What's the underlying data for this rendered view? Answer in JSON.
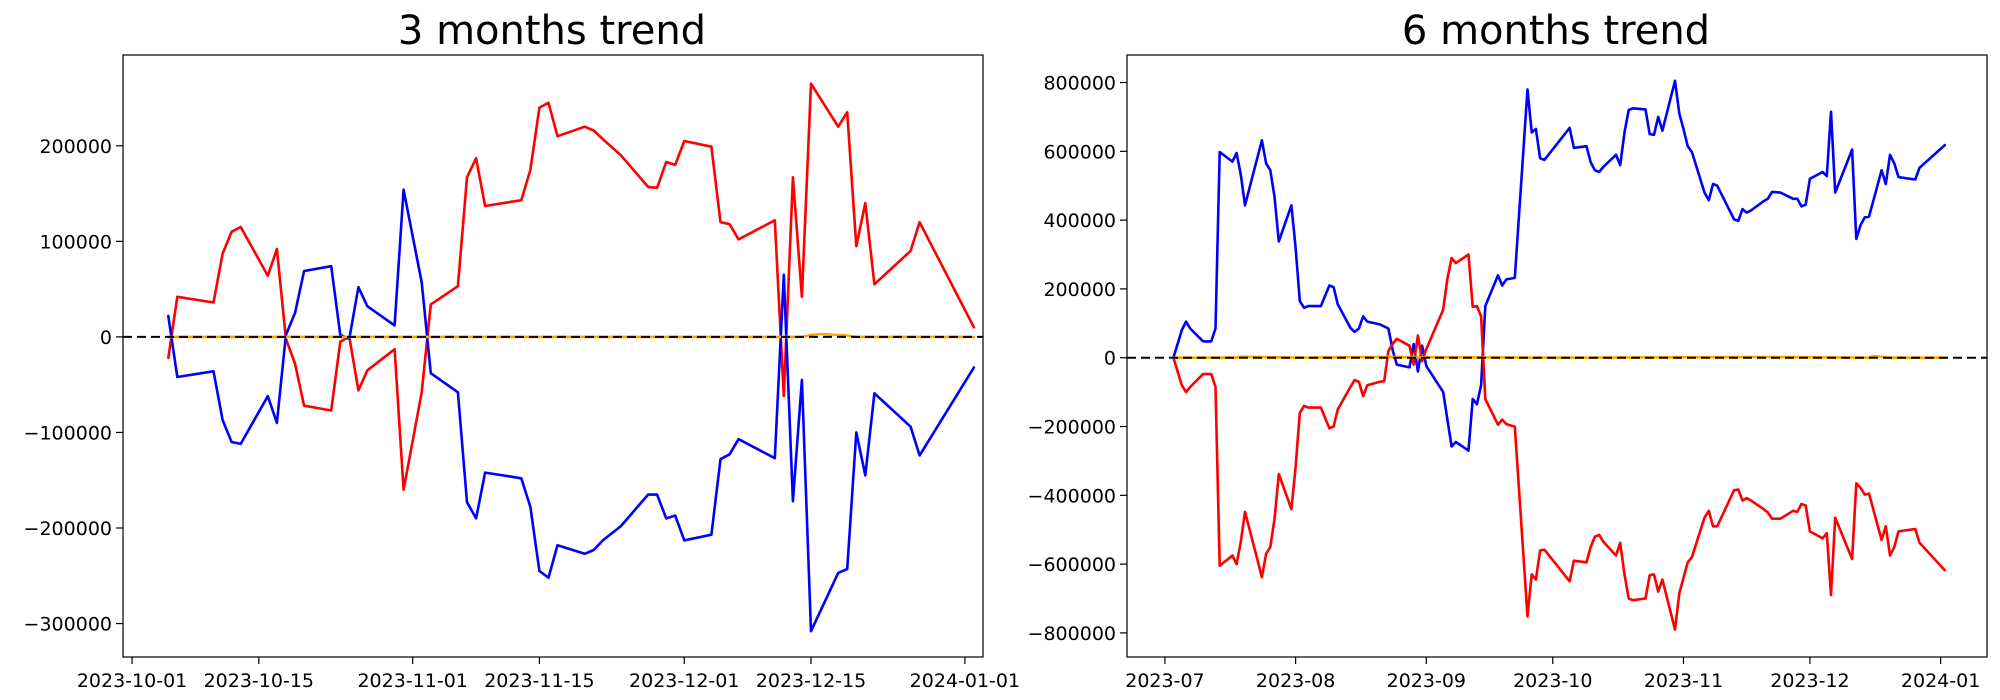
{
  "chart_data": [
    {
      "type": "line",
      "title": "3 months trend",
      "xlabel": "",
      "ylabel": "",
      "x_ticks": [
        "2023-10-01",
        "2023-10-15",
        "2023-11-01",
        "2023-11-15",
        "2023-12-01",
        "2023-12-15",
        "2024-01-01"
      ],
      "y_ticks": [
        -300000,
        -200000,
        -100000,
        0,
        100000,
        200000
      ],
      "xlim": [
        "2023-09-30",
        "2024-01-03"
      ],
      "ylim": [
        -335000,
        295000
      ],
      "grid": false,
      "reference_line": {
        "y": 0,
        "style": "dashed",
        "color": "#000000"
      },
      "series": [
        {
          "color": "#ff0000",
          "x": [
            "2023-10-05",
            "2023-10-06",
            "2023-10-10",
            "2023-10-11",
            "2023-10-12",
            "2023-10-13",
            "2023-10-16",
            "2023-10-17",
            "2023-10-18",
            "2023-10-19",
            "2023-10-20",
            "2023-10-23",
            "2023-10-24",
            "2023-10-25",
            "2023-10-26",
            "2023-10-27",
            "2023-10-30",
            "2023-10-31",
            "2023-11-02",
            "2023-11-03",
            "2023-11-06",
            "2023-11-07",
            "2023-11-08",
            "2023-11-09",
            "2023-11-13",
            "2023-11-14",
            "2023-11-15",
            "2023-11-16",
            "2023-11-17",
            "2023-11-20",
            "2023-11-21",
            "2023-11-22",
            "2023-11-24",
            "2023-11-27",
            "2023-11-28",
            "2023-11-29",
            "2023-11-30",
            "2023-12-01",
            "2023-12-04",
            "2023-12-05",
            "2023-12-06",
            "2023-12-07",
            "2023-12-11",
            "2023-12-12",
            "2023-12-13",
            "2023-12-14",
            "2023-12-15",
            "2023-12-18",
            "2023-12-19",
            "2023-12-20",
            "2023-12-21",
            "2023-12-22",
            "2023-12-26",
            "2023-12-27",
            "2024-01-02"
          ],
          "values": [
            -22000,
            42000,
            36000,
            87000,
            110000,
            115000,
            64000,
            92000,
            -2000,
            -28000,
            -72000,
            -77000,
            -5000,
            0,
            -56000,
            -35000,
            -13000,
            -160000,
            -58000,
            34000,
            53000,
            167000,
            187000,
            137000,
            143000,
            175000,
            240000,
            245000,
            210000,
            220000,
            216000,
            207000,
            190000,
            157000,
            156000,
            183000,
            180000,
            205000,
            199000,
            120000,
            118000,
            102000,
            122000,
            -62000,
            167000,
            42000,
            265000,
            220000,
            235000,
            95000,
            140000,
            55000,
            90000,
            120000,
            10000
          ]
        },
        {
          "color": "#0000ff",
          "x": [
            "2023-10-05",
            "2023-10-06",
            "2023-10-10",
            "2023-10-11",
            "2023-10-12",
            "2023-10-13",
            "2023-10-16",
            "2023-10-17",
            "2023-10-18",
            "2023-10-19",
            "2023-10-20",
            "2023-10-23",
            "2023-10-24",
            "2023-10-25",
            "2023-10-26",
            "2023-10-27",
            "2023-10-30",
            "2023-10-31",
            "2023-11-02",
            "2023-11-03",
            "2023-11-06",
            "2023-11-07",
            "2023-11-08",
            "2023-11-09",
            "2023-11-13",
            "2023-11-14",
            "2023-11-15",
            "2023-11-16",
            "2023-11-17",
            "2023-11-20",
            "2023-11-21",
            "2023-11-22",
            "2023-11-24",
            "2023-11-27",
            "2023-11-28",
            "2023-11-29",
            "2023-11-30",
            "2023-12-01",
            "2023-12-04",
            "2023-12-05",
            "2023-12-06",
            "2023-12-07",
            "2023-12-11",
            "2023-12-12",
            "2023-12-13",
            "2023-12-14",
            "2023-12-15",
            "2023-12-18",
            "2023-12-19",
            "2023-12-20",
            "2023-12-21",
            "2023-12-22",
            "2023-12-26",
            "2023-12-27",
            "2024-01-02"
          ],
          "values": [
            22000,
            -42000,
            -36000,
            -87000,
            -110000,
            -112000,
            -62000,
            -90000,
            2000,
            25000,
            69000,
            74000,
            2000,
            -2000,
            52000,
            32000,
            12000,
            154000,
            57000,
            -38000,
            -58000,
            -173000,
            -190000,
            -142000,
            -148000,
            -178000,
            -245000,
            -252000,
            -218000,
            -227000,
            -223000,
            -213000,
            -198000,
            -165000,
            -165000,
            -190000,
            -187000,
            -213000,
            -207000,
            -128000,
            -123000,
            -107000,
            -127000,
            65000,
            -172000,
            -45000,
            -308000,
            -247000,
            -243000,
            -100000,
            -145000,
            -59000,
            -94000,
            -124000,
            -32000
          ]
        },
        {
          "color": "#ffa500",
          "x": [
            "2023-10-05",
            "2023-12-01",
            "2023-12-14",
            "2023-12-15",
            "2023-12-16",
            "2023-12-18",
            "2023-12-19",
            "2023-12-20",
            "2024-01-02"
          ],
          "values": [
            0,
            0,
            0,
            2000,
            3000,
            2000,
            1500,
            0,
            0
          ]
        }
      ]
    },
    {
      "type": "line",
      "title": "6 months trend",
      "xlabel": "",
      "ylabel": "",
      "x_ticks": [
        "2023-07",
        "2023-08",
        "2023-09",
        "2023-10",
        "2023-11",
        "2023-12",
        "2024-01"
      ],
      "y_ticks": [
        -800000,
        -600000,
        -400000,
        -200000,
        0,
        200000,
        400000,
        600000,
        800000
      ],
      "xlim": [
        "2023-06-22",
        "2024-01-12"
      ],
      "ylim": [
        -870000,
        880000
      ],
      "grid": false,
      "reference_line": {
        "y": 0,
        "style": "dashed",
        "color": "#000000"
      },
      "series": [
        {
          "color": "#0000ff",
          "x": [
            "2023-07-03",
            "2023-07-05",
            "2023-07-06",
            "2023-07-07",
            "2023-07-10",
            "2023-07-11",
            "2023-07-12",
            "2023-07-13",
            "2023-07-14",
            "2023-07-17",
            "2023-07-18",
            "2023-07-19",
            "2023-07-20",
            "2023-07-24",
            "2023-07-25",
            "2023-07-26",
            "2023-07-27",
            "2023-07-28",
            "2023-07-31",
            "2023-08-01",
            "2023-08-02",
            "2023-08-03",
            "2023-08-04",
            "2023-08-07",
            "2023-08-08",
            "2023-08-09",
            "2023-08-10",
            "2023-08-11",
            "2023-08-14",
            "2023-08-15",
            "2023-08-16",
            "2023-08-17",
            "2023-08-18",
            "2023-08-21",
            "2023-08-22",
            "2023-08-23",
            "2023-08-24",
            "2023-08-25",
            "2023-08-28",
            "2023-08-29",
            "2023-08-30",
            "2023-08-31",
            "2023-09-01",
            "2023-09-05",
            "2023-09-06",
            "2023-09-07",
            "2023-09-08",
            "2023-09-11",
            "2023-09-12",
            "2023-09-13",
            "2023-09-14",
            "2023-09-15",
            "2023-09-18",
            "2023-09-19",
            "2023-09-20",
            "2023-09-21",
            "2023-09-22",
            "2023-09-25",
            "2023-09-26",
            "2023-09-27",
            "2023-09-28",
            "2023-09-29",
            "2023-10-05",
            "2023-10-06",
            "2023-10-09",
            "2023-10-10",
            "2023-10-11",
            "2023-10-12",
            "2023-10-13",
            "2023-10-16",
            "2023-10-17",
            "2023-10-18",
            "2023-10-19",
            "2023-10-20",
            "2023-10-23",
            "2023-10-24",
            "2023-10-25",
            "2023-10-26",
            "2023-10-27",
            "2023-10-30",
            "2023-10-31",
            "2023-11-01",
            "2023-11-02",
            "2023-11-03",
            "2023-11-06",
            "2023-11-07",
            "2023-11-08",
            "2023-11-09",
            "2023-11-13",
            "2023-11-14",
            "2023-11-15",
            "2023-11-16",
            "2023-11-17",
            "2023-11-20",
            "2023-11-21",
            "2023-11-22",
            "2023-11-24",
            "2023-11-27",
            "2023-11-28",
            "2023-11-29",
            "2023-11-30",
            "2023-12-01",
            "2023-12-04",
            "2023-12-05",
            "2023-12-06",
            "2023-12-07",
            "2023-12-11",
            "2023-12-12",
            "2023-12-13",
            "2023-12-14",
            "2023-12-15",
            "2023-12-18",
            "2023-12-19",
            "2023-12-20",
            "2023-12-21",
            "2023-12-22",
            "2023-12-26",
            "2023-12-27",
            "2024-01-02"
          ],
          "values": [
            0,
            80000,
            105000,
            85000,
            48000,
            47000,
            48000,
            85000,
            598000,
            570000,
            595000,
            532000,
            443000,
            632000,
            565000,
            545000,
            468000,
            338000,
            443000,
            320000,
            165000,
            145000,
            150000,
            150000,
            180000,
            210000,
            205000,
            155000,
            87000,
            75000,
            85000,
            120000,
            105000,
            97000,
            91000,
            85000,
            23000,
            -20000,
            -28000,
            40000,
            -40000,
            35000,
            -24000,
            -100000,
            -180000,
            -258000,
            -245000,
            -270000,
            -120000,
            -135000,
            -80000,
            150000,
            240000,
            210000,
            228000,
            230000,
            232000,
            780000,
            655000,
            665000,
            580000,
            575000,
            668000,
            610000,
            615000,
            568000,
            545000,
            540000,
            555000,
            590000,
            560000,
            655000,
            720000,
            725000,
            722000,
            650000,
            648000,
            700000,
            660000,
            805000,
            710000,
            665000,
            615000,
            598000,
            480000,
            458000,
            505000,
            500000,
            402000,
            398000,
            432000,
            422000,
            428000,
            455000,
            462000,
            482000,
            480000,
            462000,
            462000,
            440000,
            445000,
            520000,
            540000,
            528000,
            715000,
            480000,
            605000,
            345000,
            385000,
            408000,
            410000,
            545000,
            505000,
            590000,
            565000,
            525000,
            518000,
            552000,
            618000
          ]
        },
        {
          "color": "#ff0000",
          "x": [
            "2023-07-03",
            "2023-07-05",
            "2023-07-06",
            "2023-07-07",
            "2023-07-10",
            "2023-07-11",
            "2023-07-12",
            "2023-07-13",
            "2023-07-14",
            "2023-07-17",
            "2023-07-18",
            "2023-07-19",
            "2023-07-20",
            "2023-07-24",
            "2023-07-25",
            "2023-07-26",
            "2023-07-27",
            "2023-07-28",
            "2023-07-31",
            "2023-08-01",
            "2023-08-02",
            "2023-08-03",
            "2023-08-04",
            "2023-08-07",
            "2023-08-08",
            "2023-08-09",
            "2023-08-10",
            "2023-08-11",
            "2023-08-14",
            "2023-08-15",
            "2023-08-16",
            "2023-08-17",
            "2023-08-18",
            "2023-08-21",
            "2023-08-22",
            "2023-08-23",
            "2023-08-24",
            "2023-08-25",
            "2023-08-28",
            "2023-08-29",
            "2023-08-30",
            "2023-08-31",
            "2023-09-01",
            "2023-09-05",
            "2023-09-06",
            "2023-09-07",
            "2023-09-08",
            "2023-09-11",
            "2023-09-12",
            "2023-09-13",
            "2023-09-14",
            "2023-09-15",
            "2023-09-18",
            "2023-09-19",
            "2023-09-20",
            "2023-09-21",
            "2023-09-22",
            "2023-09-25",
            "2023-09-26",
            "2023-09-27",
            "2023-09-28",
            "2023-09-29",
            "2023-10-05",
            "2023-10-06",
            "2023-10-09",
            "2023-10-10",
            "2023-10-11",
            "2023-10-12",
            "2023-10-13",
            "2023-10-16",
            "2023-10-17",
            "2023-10-18",
            "2023-10-19",
            "2023-10-20",
            "2023-10-23",
            "2023-10-24",
            "2023-10-25",
            "2023-10-26",
            "2023-10-27",
            "2023-10-30",
            "2023-10-31",
            "2023-11-01",
            "2023-11-02",
            "2023-11-03",
            "2023-11-06",
            "2023-11-07",
            "2023-11-08",
            "2023-11-09",
            "2023-11-13",
            "2023-11-14",
            "2023-11-15",
            "2023-11-16",
            "2023-11-17",
            "2023-11-20",
            "2023-11-21",
            "2023-11-22",
            "2023-11-24",
            "2023-11-27",
            "2023-11-28",
            "2023-11-29",
            "2023-11-30",
            "2023-12-01",
            "2023-12-04",
            "2023-12-05",
            "2023-12-06",
            "2023-12-07",
            "2023-12-11",
            "2023-12-12",
            "2023-12-13",
            "2023-12-14",
            "2023-12-15",
            "2023-12-18",
            "2023-12-19",
            "2023-12-20",
            "2023-12-21",
            "2023-12-22",
            "2023-12-26",
            "2023-12-27",
            "2024-01-02"
          ],
          "values": [
            0,
            -80000,
            -100000,
            -85000,
            -48000,
            -47000,
            -48000,
            -85000,
            -605000,
            -575000,
            -600000,
            -535000,
            -448000,
            -638000,
            -570000,
            -550000,
            -470000,
            -338000,
            -440000,
            -318000,
            -160000,
            -140000,
            -145000,
            -145000,
            -175000,
            -205000,
            -200000,
            -150000,
            -85000,
            -65000,
            -70000,
            -112000,
            -80000,
            -70000,
            -68000,
            20000,
            40000,
            55000,
            35000,
            -20000,
            65000,
            -10000,
            25000,
            140000,
            230000,
            290000,
            275000,
            300000,
            148000,
            150000,
            120000,
            -120000,
            -195000,
            -180000,
            -193000,
            -197000,
            -200000,
            -752000,
            -630000,
            -645000,
            -560000,
            -558000,
            -650000,
            -590000,
            -595000,
            -550000,
            -520000,
            -515000,
            -535000,
            -575000,
            -538000,
            -630000,
            -700000,
            -705000,
            -700000,
            -632000,
            -630000,
            -680000,
            -645000,
            -790000,
            -685000,
            -640000,
            -595000,
            -580000,
            -465000,
            -445000,
            -490000,
            -490000,
            -385000,
            -383000,
            -415000,
            -408000,
            -415000,
            -440000,
            -450000,
            -468000,
            -468000,
            -445000,
            -448000,
            -425000,
            -430000,
            -505000,
            -525000,
            -510000,
            -690000,
            -465000,
            -585000,
            -365000,
            -378000,
            -398000,
            -395000,
            -530000,
            -490000,
            -575000,
            -550000,
            -505000,
            -498000,
            -538000,
            -618000
          ]
        },
        {
          "color": "#ffa500",
          "x": [
            "2023-07-03",
            "2023-07-18",
            "2023-07-19",
            "2023-08-01",
            "2023-08-20",
            "2023-10-01",
            "2023-11-20",
            "2023-12-15",
            "2023-12-16",
            "2023-12-20",
            "2024-01-02"
          ],
          "values": [
            0,
            0,
            3000,
            0,
            2000,
            0,
            2000,
            0,
            5000,
            0,
            0
          ]
        }
      ]
    }
  ]
}
